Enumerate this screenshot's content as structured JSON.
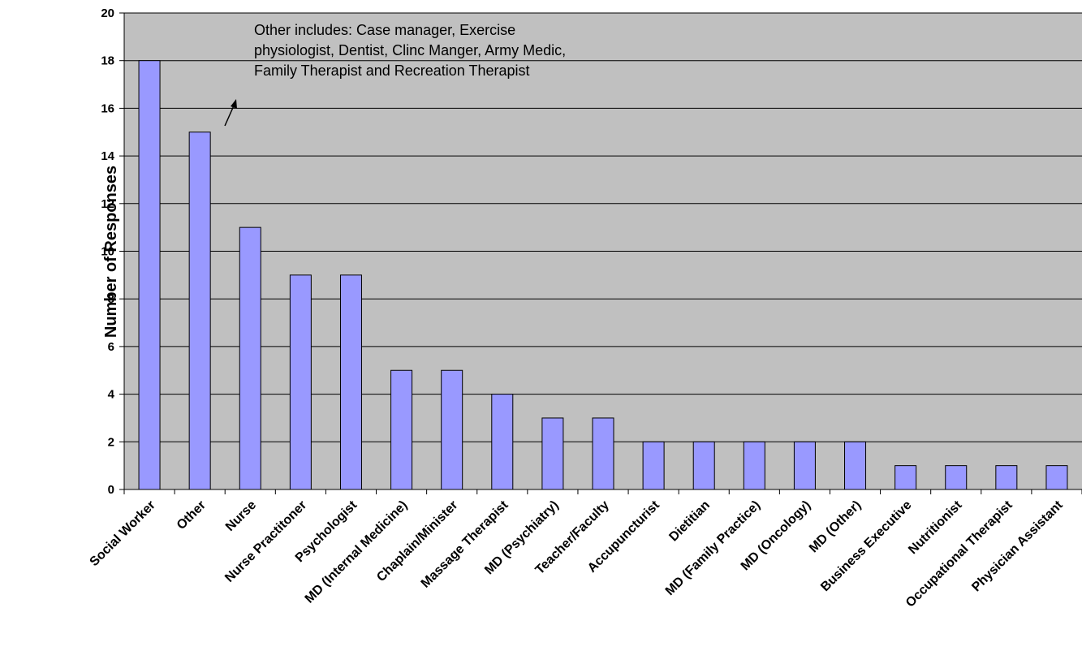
{
  "chart_data": {
    "type": "bar",
    "title": "",
    "xlabel": "",
    "ylabel": "Number of Responses",
    "ylim": [
      0,
      20
    ],
    "yticks": [
      0,
      2,
      4,
      6,
      8,
      10,
      12,
      14,
      16,
      18,
      20
    ],
    "grid": true,
    "legend": "none",
    "categories": [
      "Social Worker",
      "Other",
      "Nurse",
      "Nurse Practitoner",
      "Psychologist",
      "MD (Internal Medicine)",
      "Chaplain/Minister",
      "Massage Therapist",
      "MD (Psychiatry)",
      "Teacher/Faculty",
      "Accupuncturist",
      "Dietitian",
      "MD (Family Practice)",
      "MD (Oncology)",
      "MD (Other)",
      "Business Executive",
      "Nutritionist",
      "Occupational Therapist",
      "Physician Assistant"
    ],
    "values": [
      18,
      15,
      11,
      9,
      9,
      5,
      5,
      4,
      3,
      3,
      2,
      2,
      2,
      2,
      2,
      1,
      1,
      1,
      1
    ],
    "annotation": {
      "lines": [
        "Other includes: Case manager, Exercise",
        "physiologist, Dentist, Clinc Manger, Army Medic,",
        "Family Therapist and Recreation Therapist"
      ],
      "points_to": "Other"
    },
    "colors": {
      "plot_background": "#c0c0c0",
      "bar_fill": "#9999ff",
      "bar_stroke": "#000000",
      "grid": "#000000"
    }
  }
}
